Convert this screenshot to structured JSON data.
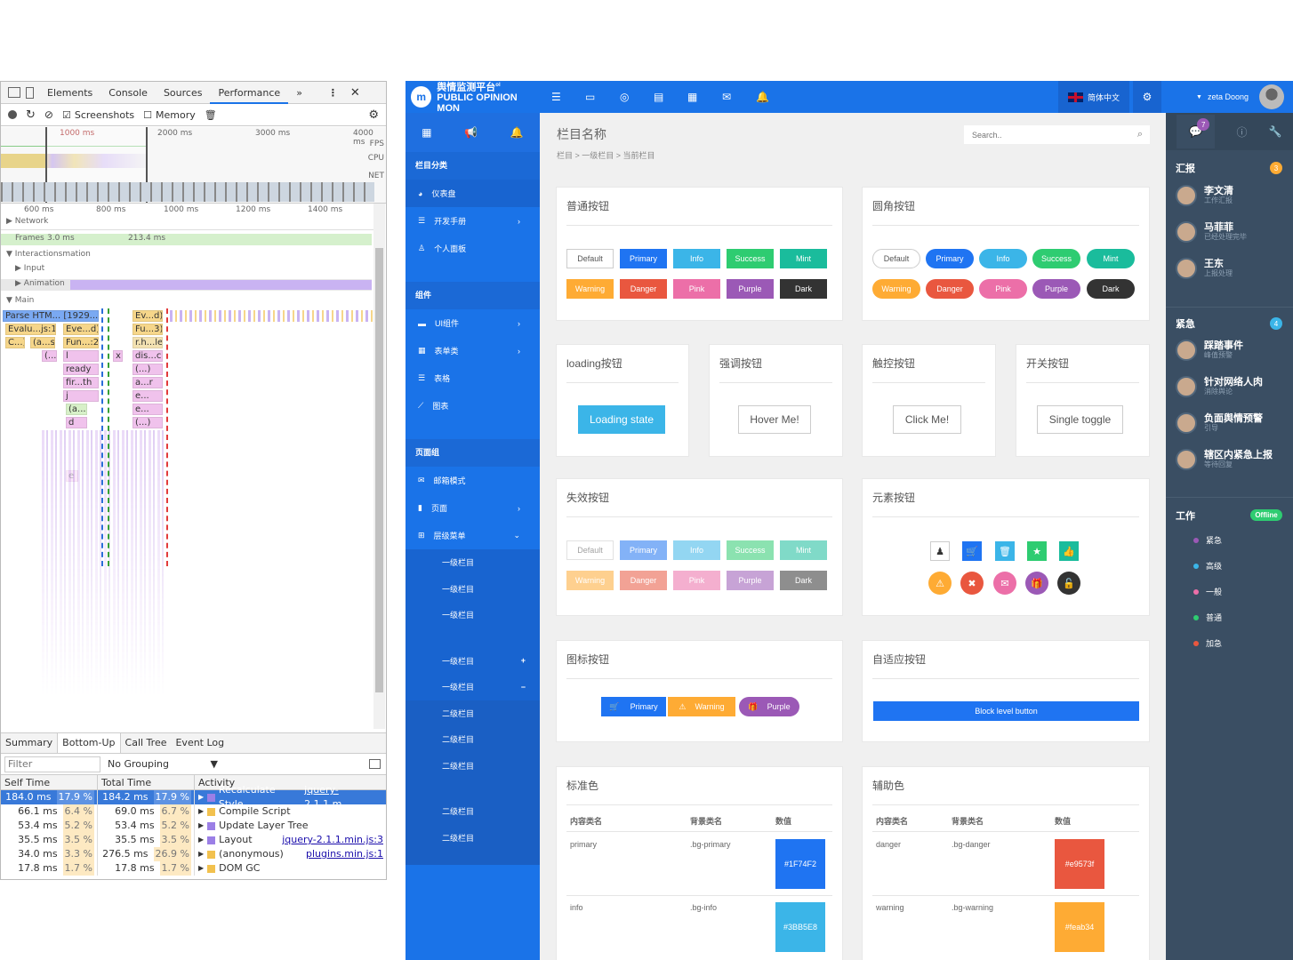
{
  "devtools": {
    "tabs": [
      "Elements",
      "Console",
      "Sources",
      "Performance",
      "»"
    ],
    "active_tab": "Performance",
    "toolbar": {
      "screenshots": "Screenshots",
      "memory": "Memory"
    },
    "overview_labels": {
      "t1": "1000 ms",
      "t2": "2000 ms",
      "t3": "3000 ms",
      "t4": "4000 ms",
      "fps": "FPS",
      "cpu": "CPU",
      "net": "NET"
    },
    "ruler": [
      "600 ms",
      "800 ms",
      "1000 ms",
      "1200 ms",
      "1400 ms"
    ],
    "tracks": {
      "network": "Network",
      "frames": "Frames",
      "frame1": "3.0 ms",
      "frame2": "213.4 ms",
      "interactions": "Interactions",
      "mation": "mation",
      "input": "Input",
      "animation": "Animation",
      "main": "Main"
    },
    "flame": {
      "r1a": "Parse HTM... [1929...])",
      "r1b": "Ev...d)",
      "r2a": "Evalu...js:1)",
      "r2b": "Eve...d)",
      "r2c": "Fu...3)",
      "r3a": "C...)",
      "r3b": "(a...s)",
      "r3c": "Fun...:2)",
      "r3d": "r.h...le",
      "r4a": "(...)",
      "r4b": "l",
      "r4c": "x",
      "r4d": "dis...ch",
      "r5a": "ready",
      "r5b": "(...)",
      "r6a": "fir...th",
      "r6b": "a...r",
      "r7a": "j",
      "r7b": "e...",
      "r8a": "(a...)",
      "r8b": "e...",
      "r9a": "d",
      "r9b": "(...)",
      "r10a": "e"
    },
    "bottom_tabs": [
      "Summary",
      "Bottom-Up",
      "Call Tree",
      "Event Log"
    ],
    "active_bottom": "Bottom-Up",
    "filter_placeholder": "Filter",
    "grouping": "No Grouping",
    "columns": [
      "Self Time",
      "Total Time",
      "Activity"
    ],
    "rows": [
      {
        "self": "184.0 ms",
        "sp": "17.9 %",
        "total": "184.2 ms",
        "tp": "17.9 %",
        "activity": "Recalculate Style",
        "link": "jquery-2.1.1.m...",
        "color": "#9b7fe6"
      },
      {
        "self": "66.1 ms",
        "sp": "6.4 %",
        "total": "69.0 ms",
        "tp": "6.7 %",
        "activity": "Compile Script",
        "link": "",
        "color": "#f2c14e"
      },
      {
        "self": "53.4 ms",
        "sp": "5.2 %",
        "total": "53.4 ms",
        "tp": "5.2 %",
        "activity": "Update Layer Tree",
        "link": "",
        "color": "#9b7fe6"
      },
      {
        "self": "35.5 ms",
        "sp": "3.5 %",
        "total": "35.5 ms",
        "tp": "3.5 %",
        "activity": "Layout",
        "link": "jquery-2.1.1.min.js:3",
        "color": "#9b7fe6"
      },
      {
        "self": "34.0 ms",
        "sp": "3.3 %",
        "total": "276.5 ms",
        "tp": "26.9 %",
        "activity": "(anonymous)",
        "link": "plugins.min.js:1",
        "color": "#f2c14e"
      },
      {
        "self": "17.8 ms",
        "sp": "1.7 %",
        "total": "17.8 ms",
        "tp": "1.7 %",
        "activity": "DOM GC",
        "link": "",
        "color": "#f2c14e"
      }
    ]
  },
  "app": {
    "logo_text_1": "舆情监测平台",
    "logo_sup": "ol",
    "logo_text_2": "PUBLIC OPINION MON",
    "lang": "简体中文",
    "user": "zeta Doong",
    "page_title": "栏目名称",
    "search_placeholder": "Search..",
    "breadcrumb": "栏目 > 一级栏目 > 当前栏目",
    "sidebar": {
      "sec1": "栏目分类",
      "items1": [
        "仪表盘",
        "开发手册",
        "个人面板"
      ],
      "sec2": "组件",
      "items2": [
        "UI组件",
        "表单类",
        "表格",
        "图表"
      ],
      "sec3": "页面组",
      "items3": [
        "邮箱模式",
        "页面",
        "层级菜单"
      ],
      "sub1": [
        "一级栏目",
        "一级栏目",
        "一级栏目"
      ],
      "sub2": [
        "一级栏目",
        "一级栏目"
      ],
      "sub3": [
        "二级栏目",
        "二级栏目",
        "二级栏目"
      ],
      "sub4": [
        "二级栏目",
        "二级栏目"
      ]
    },
    "cards": {
      "normal": "普通按钮",
      "round": "圆角按钮",
      "loading": "loading按钮",
      "emph": "强调按钮",
      "touch": "触控按钮",
      "switch": "开关按钮",
      "disabled": "失效按钮",
      "element": "元素按钮",
      "icon": "图标按钮",
      "adaptive": "自适应按钮",
      "std": "标准色",
      "aux": "辅助色"
    },
    "buttons": {
      "default": "Default",
      "primary": "Primary",
      "info": "Info",
      "success": "Success",
      "mint": "Mint",
      "warning": "Warning",
      "danger": "Danger",
      "pink": "Pink",
      "purple": "Purple",
      "dark": "Dark"
    },
    "loading_state": "Loading state",
    "hover_me": "Hover Me!",
    "click_me": "Click Me!",
    "single_toggle": "Single toggle",
    "block_button": "Block level button",
    "color_table": {
      "headers": [
        "内容类名",
        "背景类名",
        "数值"
      ],
      "std": [
        {
          "name": "primary",
          "cls": ".bg-primary",
          "val": "#1F74F2",
          "color": "#1f74f2"
        },
        {
          "name": "info",
          "cls": ".bg-info",
          "val": "#3BB5E8",
          "color": "#3bb5e8"
        }
      ],
      "aux": [
        {
          "name": "danger",
          "cls": ".bg-danger",
          "val": "#e9573f",
          "color": "#e9573f"
        },
        {
          "name": "warning",
          "cls": ".bg-warning",
          "val": "#feab34",
          "color": "#feab34"
        }
      ]
    },
    "right_panel": {
      "badge_tab": "7",
      "report": "汇报",
      "report_badge": "3",
      "report_users": [
        {
          "name": "李文清",
          "sub": "工作汇报"
        },
        {
          "name": "马菲菲",
          "sub": "已经处理完毕"
        },
        {
          "name": "王东",
          "sub": "上报处理"
        }
      ],
      "urgent": "紧急",
      "urgent_badge": "4",
      "urgent_users": [
        {
          "name": "踩踏事件",
          "sub": "峰值预警"
        },
        {
          "name": "针对网络人肉",
          "sub": "消除舆论"
        },
        {
          "name": "负面舆情预警",
          "sub": "引导"
        },
        {
          "name": "辖区内紧急上报",
          "sub": "等待回复"
        }
      ],
      "work": "工作",
      "work_status": "Offline",
      "work_items": [
        {
          "label": "紧急",
          "color": "#9b59b6"
        },
        {
          "label": "高级",
          "color": "#3bb5e8"
        },
        {
          "label": "一般",
          "color": "#ec6fa8"
        },
        {
          "label": "普通",
          "color": "#2ecc71"
        },
        {
          "label": "加急",
          "color": "#e9573f"
        }
      ]
    }
  }
}
